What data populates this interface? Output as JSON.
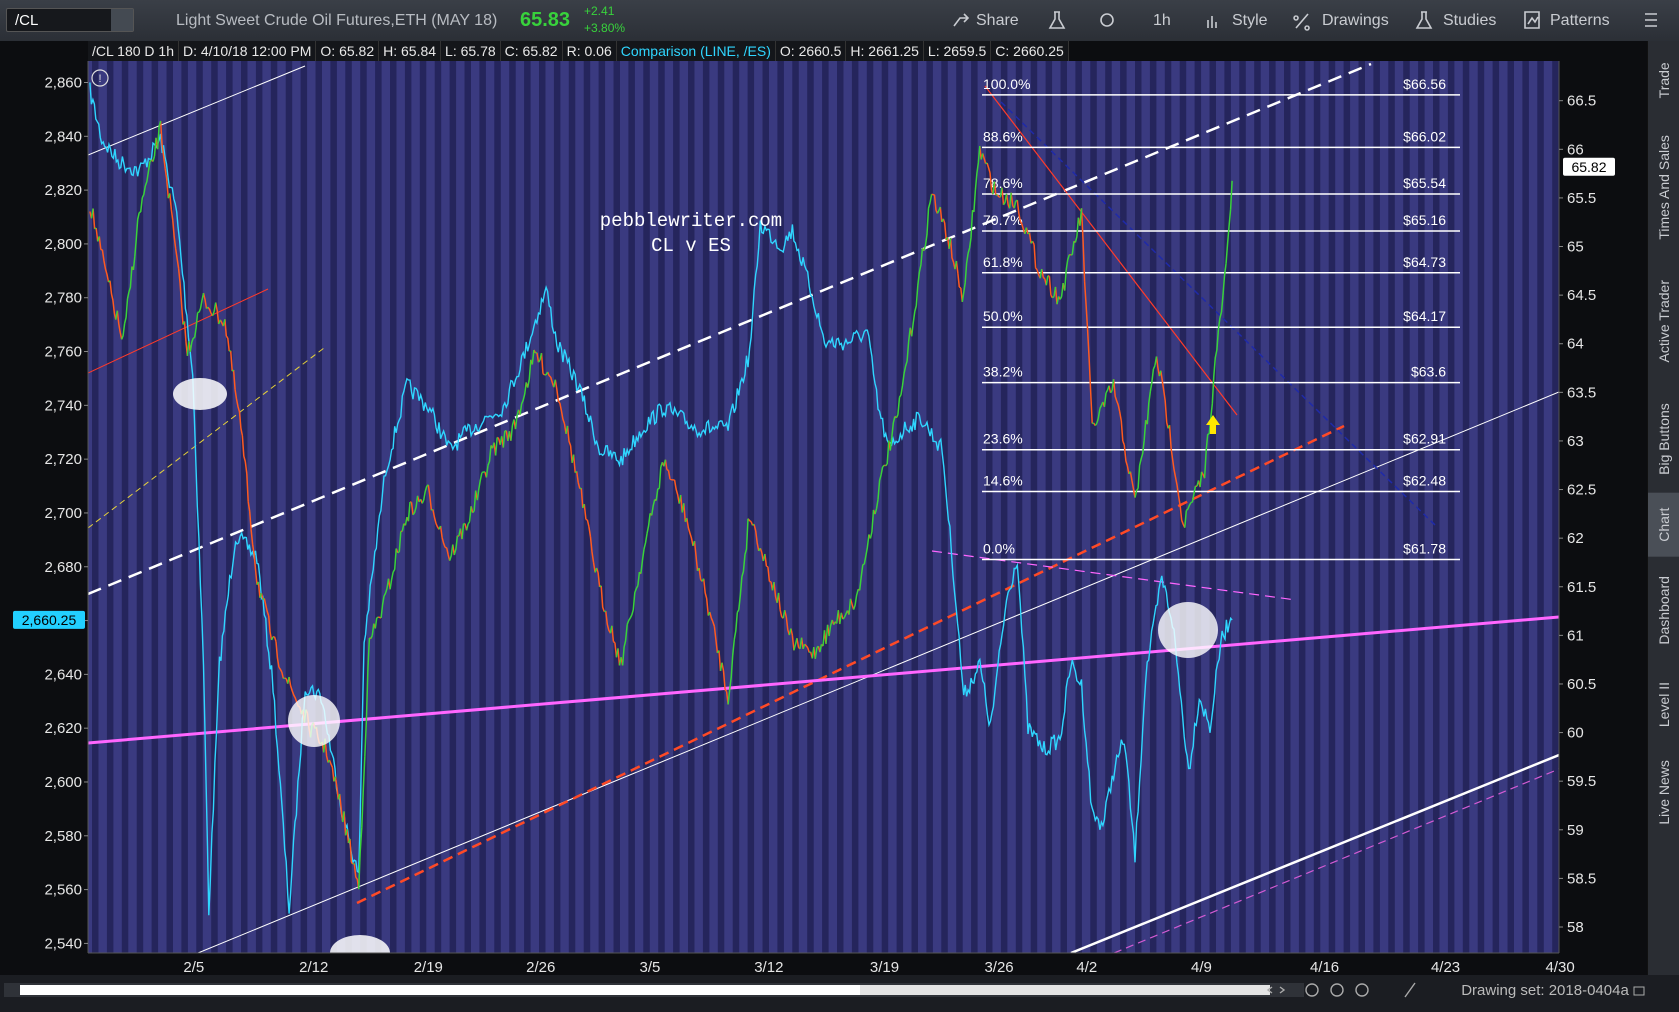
{
  "toolbar": {
    "symbol": "/CL",
    "description": "Light Sweet Crude Oil Futures,ETH (MAY 18)",
    "last": "65.83",
    "change": "+2.41",
    "change_pct": "+3.80%",
    "buttons": [
      "Share",
      "1h",
      "Style",
      "Drawings",
      "Studies",
      "Patterns"
    ]
  },
  "info": {
    "study": "/CL 180 D 1h",
    "fields": [
      "D: 4/10/18 12:00 PM",
      "O: 65.82",
      "H: 65.84",
      "L: 65.78",
      "C: 65.82",
      "R: 0.06"
    ],
    "comparison": "Comparison (LINE, /ES)",
    "comparison_fields": [
      "O: 2660.5",
      "H: 2661.25",
      "L: 2659.5",
      "C: 2660.25"
    ]
  },
  "chart": {
    "watermark": [
      "pebblewriter.com",
      "CL v ES"
    ],
    "left_axis": {
      "lim": [
        2540,
        2860
      ],
      "ticks": [
        {
          "value": 2540,
          "label": "2,540"
        },
        {
          "value": 2560,
          "label": "2,560"
        },
        {
          "value": 2580,
          "label": "2,580"
        },
        {
          "value": 2600,
          "label": "2,600"
        },
        {
          "value": 2620,
          "label": "2,620"
        },
        {
          "value": 2640,
          "label": "2,640"
        },
        {
          "value": 2660,
          "label": "2,660"
        },
        {
          "value": 2680,
          "label": "2,680"
        },
        {
          "value": 2700,
          "label": "2,700"
        },
        {
          "value": 2720,
          "label": "2,720"
        },
        {
          "value": 2740,
          "label": "2,740"
        },
        {
          "value": 2760,
          "label": "2,760"
        },
        {
          "value": 2780,
          "label": "2,780"
        },
        {
          "value": 2800,
          "label": "2,800"
        },
        {
          "value": 2820,
          "label": "2,820"
        },
        {
          "value": 2840,
          "label": "2,840"
        },
        {
          "value": 2860,
          "label": "2,860"
        }
      ],
      "current": {
        "value": 2660.25,
        "label": "2,660.25"
      }
    },
    "right_axis": {
      "lim": [
        58,
        66.5
      ],
      "ticks": [
        58,
        58.5,
        59,
        59.5,
        60,
        60.5,
        61,
        61.5,
        62,
        62.5,
        63,
        63.5,
        64,
        64.5,
        65,
        65.5,
        66,
        66.5
      ],
      "current": 65.82
    },
    "x_ticks": [
      "2/5",
      "2/12",
      "2/19",
      "2/26",
      "3/5",
      "3/12",
      "3/19",
      "3/26",
      "4/2",
      "4/9",
      "4/16",
      "4/23",
      "4/30"
    ],
    "fib_levels": [
      {
        "label": "100.0%",
        "value": 66.56,
        "value_label": "$66.56"
      },
      {
        "label": "88.6%",
        "value": 66.02,
        "value_label": "$66.02"
      },
      {
        "label": "78.6%",
        "value": 65.54,
        "value_label": "$65.54"
      },
      {
        "label": "70.7%",
        "value": 65.16,
        "value_label": "$65.16"
      },
      {
        "label": "61.8%",
        "value": 64.73,
        "value_label": "$64.73"
      },
      {
        "label": "50.0%",
        "value": 64.17,
        "value_label": "$64.17"
      },
      {
        "label": "38.2%",
        "value": 63.6,
        "value_label": "$63.6"
      },
      {
        "label": "23.6%",
        "value": 62.91,
        "value_label": "$62.91"
      },
      {
        "label": "14.6%",
        "value": 62.48,
        "value_label": "$62.48"
      },
      {
        "label": "0.0%",
        "value": 61.78,
        "value_label": "$61.78"
      }
    ]
  },
  "sidebar": [
    "Trade",
    "Times And Sales",
    "Active Trader",
    "Big Buttons",
    "Chart",
    "Dashboard",
    "Level II",
    "Live News"
  ],
  "footer": {
    "drawing_set": "Drawing set: 2018-0404a"
  }
}
